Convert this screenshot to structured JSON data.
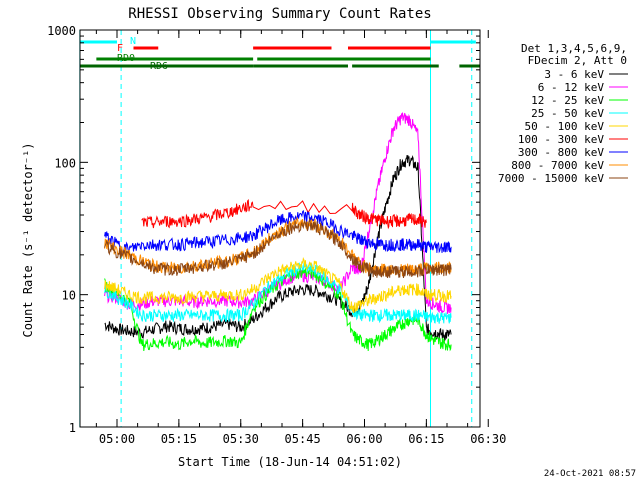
{
  "chart_data": {
    "type": "line",
    "title": "RHESSI Observing Summary Count Rates",
    "xlabel": "Start Time (18-Jun-14 04:51:02)",
    "ylabel": "Count Rate (s⁻¹ detector⁻¹)",
    "y_scale": "log",
    "ylim": [
      1,
      1000
    ],
    "xlim": [
      "04:51:02",
      "06:28:00"
    ],
    "x_tick_labels": [
      "05:00",
      "05:15",
      "05:30",
      "05:45",
      "06:00",
      "06:15",
      "06:30"
    ],
    "y_tick_labels": [
      "1",
      "10",
      "100",
      "1000"
    ],
    "date_stamp": "24-Oct-2021 08:57",
    "legend": {
      "header": [
        "Det 1,3,4,5,6,9,",
        "FDecim 2, Att 0"
      ],
      "placement": "right"
    },
    "series": [
      {
        "name": "3 - 6 keV",
        "color": "#000000",
        "x": [
          "04:57",
          "05:00",
          "05:03",
          "05:06",
          "05:09",
          "05:12",
          "05:15",
          "05:18",
          "05:21",
          "05:24",
          "05:27",
          "05:30",
          "05:33",
          "05:36",
          "05:39",
          "05:42",
          "05:45",
          "05:48",
          "05:51",
          "05:54",
          "05:57",
          "05:59",
          "06:01",
          "06:03",
          "06:05",
          "06:07",
          "06:09",
          "06:11",
          "06:13",
          "06:15",
          "06:17",
          "06:19",
          "06:21"
        ],
        "y": [
          6,
          5.5,
          5.3,
          5.2,
          5.5,
          5.8,
          5.6,
          5.5,
          5.6,
          5.8,
          6,
          5.7,
          6.5,
          8,
          9.5,
          10.5,
          11,
          10.8,
          10,
          9,
          7.5,
          8,
          12,
          25,
          45,
          75,
          100,
          105,
          90,
          5.5,
          5.2,
          5,
          5
        ]
      },
      {
        "name": "6 - 12 keV",
        "color": "#ff00ff",
        "x": [
          "04:57",
          "05:00",
          "05:03",
          "05:06",
          "05:09",
          "05:12",
          "05:15",
          "05:18",
          "05:21",
          "05:24",
          "05:27",
          "05:30",
          "05:33",
          "05:36",
          "05:39",
          "05:42",
          "05:45",
          "05:48",
          "05:51",
          "05:54",
          "05:57",
          "05:59",
          "06:01",
          "06:03",
          "06:05",
          "06:07",
          "06:09",
          "06:11",
          "06:13",
          "06:15",
          "06:17",
          "06:19",
          "06:21"
        ],
        "y": [
          10,
          9.5,
          8.5,
          8.5,
          9,
          9,
          9,
          8.8,
          9,
          9,
          9,
          8.8,
          9,
          10.5,
          12,
          13.5,
          14,
          13.5,
          12.5,
          11,
          16,
          15,
          30,
          60,
          110,
          180,
          220,
          210,
          160,
          9,
          8.5,
          8,
          8
        ]
      },
      {
        "name": "12 - 25 keV",
        "color": "#00ff00",
        "x": [
          "04:57",
          "05:00",
          "05:03",
          "05:06",
          "05:09",
          "05:12",
          "05:15",
          "05:18",
          "05:21",
          "05:24",
          "05:27",
          "05:30",
          "05:33",
          "05:36",
          "05:39",
          "05:42",
          "05:45",
          "05:48",
          "05:51",
          "05:54",
          "05:57",
          "05:59",
          "06:01",
          "06:03",
          "06:05",
          "06:07",
          "06:09",
          "06:11",
          "06:13",
          "06:15",
          "06:17",
          "06:19",
          "06:21"
        ],
        "y": [
          12,
          10,
          9,
          4.2,
          4.3,
          4.4,
          4.2,
          4.5,
          4.3,
          4.4,
          4.5,
          4.3,
          8,
          10,
          12,
          14,
          15,
          14.5,
          12,
          10,
          5,
          4.5,
          4.2,
          4.5,
          5,
          5.5,
          6,
          6.5,
          6.5,
          5,
          4.5,
          4.3,
          4.2
        ]
      },
      {
        "name": "25 - 50 keV",
        "color": "#00ffff",
        "x": [
          "04:57",
          "05:00",
          "05:03",
          "05:06",
          "05:09",
          "05:12",
          "05:15",
          "05:18",
          "05:21",
          "05:24",
          "05:27",
          "05:30",
          "05:33",
          "05:36",
          "05:39",
          "05:42",
          "05:45",
          "05:48",
          "05:51",
          "05:54",
          "05:57",
          "05:59",
          "06:01",
          "06:03",
          "06:05",
          "06:07",
          "06:09",
          "06:11",
          "06:13",
          "06:15",
          "06:17",
          "06:19",
          "06:21"
        ],
        "y": [
          11,
          9.5,
          8.5,
          7,
          7,
          7,
          7,
          7,
          7,
          7,
          7,
          7,
          8.5,
          11,
          13,
          15,
          16,
          15.5,
          13,
          11,
          7.5,
          7,
          7,
          7,
          7,
          7,
          7,
          7,
          7,
          6.8,
          6.8,
          6.7,
          6.7
        ]
      },
      {
        "name": "50 - 100 keV",
        "color": "#ffd700",
        "x": [
          "04:57",
          "05:00",
          "05:03",
          "05:06",
          "05:09",
          "05:12",
          "05:15",
          "05:18",
          "05:21",
          "05:24",
          "05:27",
          "05:30",
          "05:33",
          "05:36",
          "05:39",
          "05:42",
          "05:45",
          "05:48",
          "05:51",
          "05:54",
          "05:57",
          "05:59",
          "06:01",
          "06:03",
          "06:05",
          "06:07",
          "06:09",
          "06:11",
          "06:13",
          "06:15",
          "06:17",
          "06:19",
          "06:21"
        ],
        "y": [
          12,
          11,
          10,
          9.5,
          9.5,
          9.6,
          9.5,
          9.7,
          9.8,
          9.8,
          10,
          10,
          11,
          13,
          15,
          16,
          17,
          16.5,
          14,
          12,
          8,
          8.5,
          9,
          9.5,
          10,
          10.5,
          11,
          11,
          11,
          10,
          10,
          9.8,
          9.8
        ]
      },
      {
        "name": "100 - 300 keV",
        "color": "#ff0000",
        "x": [
          "05:06",
          "05:09",
          "05:12",
          "05:15",
          "05:18",
          "05:21",
          "05:24",
          "05:27",
          "05:30",
          "05:33",
          "05:57",
          "05:59",
          "06:01",
          "06:03",
          "06:05",
          "06:07",
          "06:09",
          "06:11",
          "06:13",
          "06:15"
        ],
        "y": [
          35,
          35,
          36,
          36,
          37,
          38,
          40,
          42,
          45,
          48,
          45,
          40,
          38,
          37,
          36,
          36,
          36,
          37,
          37,
          35
        ]
      },
      {
        "name": "300 - 800 keV",
        "color": "#0000ff",
        "x": [
          "04:57",
          "05:00",
          "05:03",
          "05:06",
          "05:09",
          "05:12",
          "05:15",
          "05:18",
          "05:21",
          "05:24",
          "05:27",
          "05:30",
          "05:33",
          "05:36",
          "05:39",
          "05:42",
          "05:45",
          "05:48",
          "05:51",
          "05:54",
          "05:57",
          "05:59",
          "06:01",
          "06:03",
          "06:05",
          "06:07",
          "06:09",
          "06:11",
          "06:13",
          "06:15",
          "06:17",
          "06:19",
          "06:21"
        ],
        "y": [
          28,
          24,
          22,
          24,
          24,
          24,
          24,
          24.5,
          25,
          25.5,
          26,
          27,
          28,
          32,
          36,
          38,
          39,
          38,
          35,
          31,
          28,
          26,
          25,
          24,
          24,
          24,
          24,
          24,
          24,
          23,
          23,
          23,
          23
        ]
      },
      {
        "name": "800 - 7000 keV",
        "color": "#ff8c00",
        "x": [
          "04:57",
          "05:00",
          "05:03",
          "05:06",
          "05:09",
          "05:12",
          "05:15",
          "05:18",
          "05:21",
          "05:24",
          "05:27",
          "05:30",
          "05:33",
          "05:36",
          "05:39",
          "05:42",
          "05:45",
          "05:48",
          "05:51",
          "05:54",
          "05:57",
          "05:59",
          "06:01",
          "06:03",
          "06:05",
          "06:07",
          "06:09",
          "06:11",
          "06:13",
          "06:15",
          "06:17",
          "06:19",
          "06:21"
        ],
        "y": [
          25,
          22,
          20,
          18,
          16.5,
          16,
          16,
          16.5,
          17,
          17.5,
          18,
          19,
          21,
          25,
          30,
          33,
          35,
          34,
          30,
          26,
          20,
          17,
          16,
          15.5,
          15.5,
          15.5,
          15.5,
          15.5,
          15.5,
          16,
          16,
          16,
          16
        ]
      },
      {
        "name": "7000 - 15000 keV",
        "color": "#8b4513",
        "x": [
          "04:57",
          "05:00",
          "05:03",
          "05:06",
          "05:09",
          "05:12",
          "05:15",
          "05:18",
          "05:21",
          "05:24",
          "05:27",
          "05:30",
          "05:33",
          "05:36",
          "05:39",
          "05:42",
          "05:45",
          "05:48",
          "05:51",
          "05:54",
          "05:57",
          "05:59",
          "06:01",
          "06:03",
          "06:05",
          "06:07",
          "06:09",
          "06:11",
          "06:13",
          "06:15",
          "06:17",
          "06:19",
          "06:21"
        ],
        "y": [
          24,
          21,
          19,
          17.5,
          16,
          15.5,
          15.5,
          16,
          16.5,
          17,
          17.5,
          18.5,
          20.5,
          24,
          29,
          32,
          34,
          33,
          29,
          25,
          19,
          16.5,
          15.5,
          15,
          15,
          15,
          15,
          15,
          15,
          15.5,
          15.5,
          15.5,
          15.5
        ]
      }
    ],
    "flag_bars": [
      {
        "label": "N",
        "color": "#00ffff",
        "row": "N",
        "segments": [
          [
            "04:51",
            "05:00"
          ],
          [
            "06:16",
            "06:27"
          ]
        ]
      },
      {
        "label": "F",
        "color": "#ff0000",
        "row": "F",
        "segments": [
          [
            "05:04",
            "05:10"
          ],
          [
            "05:33",
            "05:52"
          ],
          [
            "05:56",
            "06:16"
          ]
        ]
      },
      {
        "label": "RD0",
        "color": "#008000",
        "row": "RD0",
        "segments": [
          [
            "04:55",
            "05:33"
          ],
          [
            "05:34",
            "06:16"
          ]
        ]
      },
      {
        "label": "RD6",
        "color": "#006400",
        "row": "RD6",
        "segments": [
          [
            "04:51",
            "05:33"
          ],
          [
            "05:33",
            "05:56"
          ],
          [
            "05:57",
            "06:18"
          ],
          [
            "06:23",
            "06:28"
          ]
        ]
      }
    ],
    "vertical_markers": [
      {
        "time": "04:51",
        "color": "#00ffff",
        "style": "solid"
      },
      {
        "time": "05:01",
        "color": "#00ffff",
        "style": "dashed"
      },
      {
        "time": "06:16",
        "color": "#00ffff",
        "style": "solid"
      },
      {
        "time": "06:26",
        "color": "#00ffff",
        "style": "dashed"
      }
    ]
  }
}
